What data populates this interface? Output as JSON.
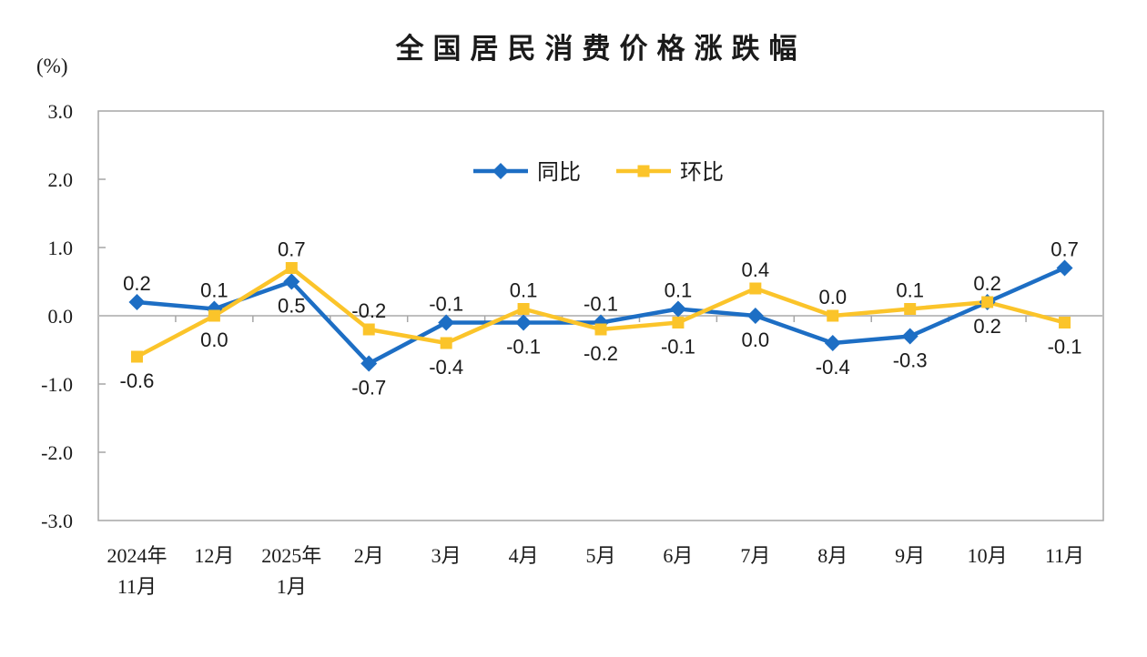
{
  "page": {
    "background": "#ffffff"
  },
  "chart_data": {
    "type": "line",
    "title": "全国居民消费价格涨跌幅",
    "unit_label": "(%)",
    "categories": [
      [
        "2024年",
        "11月"
      ],
      [
        "12月"
      ],
      [
        "2025年",
        "1月"
      ],
      [
        "2月"
      ],
      [
        "3月"
      ],
      [
        "4月"
      ],
      [
        "5月"
      ],
      [
        "6月"
      ],
      [
        "7月"
      ],
      [
        "8月"
      ],
      [
        "9月"
      ],
      [
        "10月"
      ],
      [
        "11月"
      ]
    ],
    "series": [
      {
        "name": "同比",
        "marker": "diamond",
        "color": "#1D6EC4",
        "values": [
          0.2,
          0.1,
          0.5,
          -0.7,
          -0.1,
          -0.1,
          -0.1,
          0.1,
          0.0,
          -0.4,
          -0.3,
          0.2,
          0.7
        ],
        "label_positions": [
          "above",
          "above",
          "below",
          "below",
          "above",
          "below",
          "above",
          "above",
          "below",
          "below",
          "below",
          "below",
          "above"
        ]
      },
      {
        "name": "环比",
        "marker": "square",
        "color": "#FBC42A",
        "values": [
          -0.6,
          0.0,
          0.7,
          -0.2,
          -0.4,
          0.1,
          -0.2,
          -0.1,
          0.4,
          0.0,
          0.1,
          0.2,
          -0.1
        ],
        "label_positions": [
          "below",
          "below",
          "above",
          "above",
          "below",
          "above",
          "below",
          "below",
          "above",
          "above",
          "above",
          "above",
          "below"
        ]
      }
    ],
    "ylim": [
      -3.0,
      3.0
    ],
    "yticks": [
      3.0,
      2.0,
      1.0,
      0.0,
      -1.0,
      -2.0,
      -3.0
    ],
    "grid": false,
    "legend_position": "inside-top-center",
    "axis_style": {
      "zero_line_color": "#BFBFBF",
      "border_color": "#A6A6A6",
      "tick_color": "#A6A6A6",
      "text_color": "#1a1a1a"
    }
  }
}
